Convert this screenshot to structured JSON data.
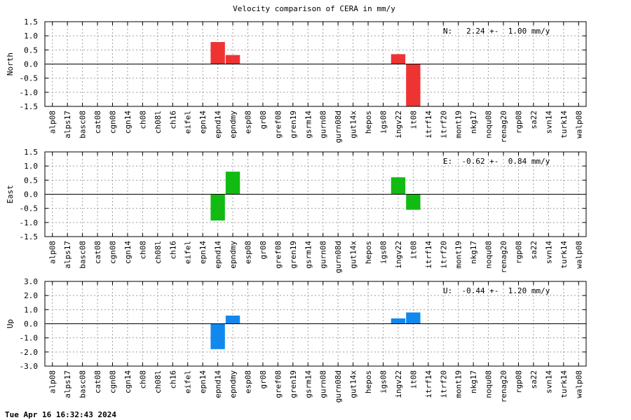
{
  "chart_data": {
    "type": "bar",
    "title": "Velocity comparison of CERA in mm/y",
    "categories": [
      "alp08",
      "alps17",
      "basc08",
      "cat08",
      "cgn08",
      "cgn14",
      "ch08",
      "ch08l",
      "ch16",
      "eifel",
      "epn14",
      "epnd14",
      "epndmy",
      "esp08",
      "gr08",
      "gref08",
      "gren19",
      "gsrm14",
      "gurn08",
      "gurn08d",
      "gut14x",
      "hepos",
      "igs08",
      "ingv22",
      "it08",
      "itrf14",
      "itrf20",
      "mont19",
      "nkg17",
      "noqu08",
      "renag20",
      "rgp08",
      "sa22",
      "svn14",
      "turk14",
      "walp08"
    ],
    "panels": [
      {
        "ylabel": "North",
        "ylim": [
          -1.5,
          1.5
        ],
        "yticks": [
          "1.5",
          "1.0",
          "0.5",
          "0.0",
          "-0.5",
          "-1.0",
          "-1.5"
        ],
        "color": "#ee3333",
        "summary": "N:   2.24 +-  1.00 mm/y",
        "values": {
          "epnd14": 0.78,
          "epndmy": 0.32,
          "ingv22": 0.35,
          "it08": -1.55
        }
      },
      {
        "ylabel": "East",
        "ylim": [
          -1.5,
          1.5
        ],
        "yticks": [
          "1.5",
          "1.0",
          "0.5",
          "0.0",
          "-0.5",
          "-1.0",
          "-1.5"
        ],
        "color": "#11bb11",
        "summary": "E:  -0.62 +-  0.84 mm/y",
        "values": {
          "epnd14": -0.93,
          "epndmy": 0.8,
          "ingv22": 0.6,
          "it08": -0.55
        }
      },
      {
        "ylabel": "Up",
        "ylim": [
          -3.0,
          3.0
        ],
        "yticks": [
          "3.0",
          "2.0",
          "1.0",
          "0.0",
          "-1.0",
          "-2.0",
          "-3.0"
        ],
        "color": "#1188ee",
        "summary": "U:  -0.44 +-  1.20 mm/y",
        "values": {
          "epnd14": -1.8,
          "epndmy": 0.58,
          "ingv22": 0.38,
          "it08": 0.8
        }
      }
    ],
    "grid": true,
    "legend": "none"
  },
  "footer": {
    "timestamp": "Tue Apr 16 16:32:43 2024"
  }
}
